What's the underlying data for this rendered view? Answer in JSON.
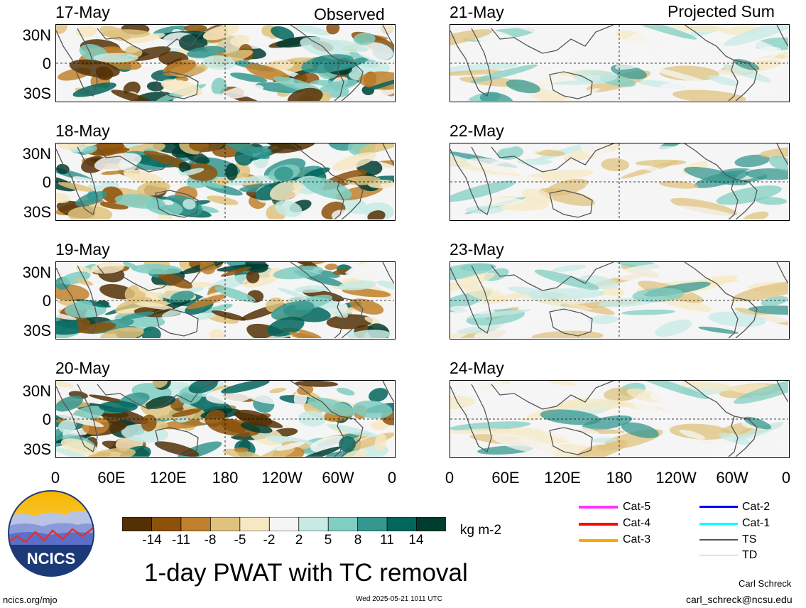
{
  "headers": {
    "observed": "Observed",
    "projected": "Projected Sum"
  },
  "panels": [
    {
      "date": "17-May",
      "group": "observed"
    },
    {
      "date": "18-May",
      "group": "observed"
    },
    {
      "date": "19-May",
      "group": "observed"
    },
    {
      "date": "20-May",
      "group": "observed"
    },
    {
      "date": "21-May",
      "group": "projected"
    },
    {
      "date": "22-May",
      "group": "projected"
    },
    {
      "date": "23-May",
      "group": "projected"
    },
    {
      "date": "24-May",
      "group": "projected"
    }
  ],
  "lat_labels": [
    "30N",
    "0",
    "30S"
  ],
  "lon_labels": [
    "0",
    "60E",
    "120E",
    "180",
    "120W",
    "60W",
    "0"
  ],
  "colorbar": {
    "labels": [
      "-14",
      "-11",
      "-8",
      "-5",
      "-2",
      "2",
      "5",
      "8",
      "11",
      "14"
    ],
    "colors": [
      "#543005",
      "#8c510a",
      "#bf812d",
      "#dfc27d",
      "#f6e8c3",
      "#f5f5f5",
      "#c7eae5",
      "#80cdc1",
      "#35978f",
      "#01665e",
      "#003c30"
    ],
    "units": "kg m-2"
  },
  "tc_legend": [
    {
      "label": "Cat-5",
      "color": "#ff33ff"
    },
    {
      "label": "Cat-4",
      "color": "#ff0000"
    },
    {
      "label": "Cat-3",
      "color": "#ffa500"
    },
    {
      "label": "Cat-2",
      "color": "#0000ff"
    },
    {
      "label": "Cat-1",
      "color": "#00ffff"
    },
    {
      "label": "TS",
      "color": "#555555"
    },
    {
      "label": "TD",
      "color": "#bbbbbb"
    }
  ],
  "logo_text": "NCICS",
  "title": "1-day PWAT with TC removal",
  "footer": {
    "left": "ncics.org/mjo",
    "center": "Wed 2025-05-21 1011 UTC",
    "author": "Carl Schreck",
    "email": "carl_schreck@ncsu.edu"
  }
}
